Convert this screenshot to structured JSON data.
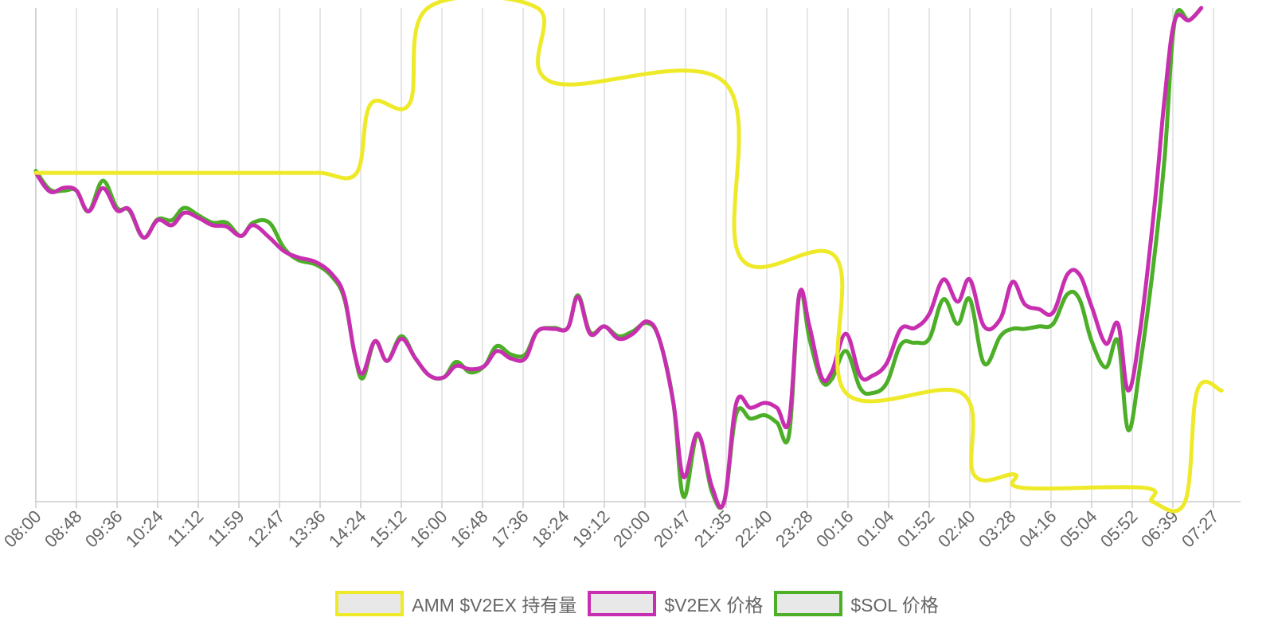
{
  "chart_data": {
    "type": "line",
    "x": [
      "08:00",
      "08:48",
      "09:36",
      "10:24",
      "11:12",
      "11:59",
      "12:47",
      "13:36",
      "14:24",
      "15:12",
      "16:00",
      "16:48",
      "17:36",
      "18:24",
      "19:12",
      "20:00",
      "20:47",
      "21:35",
      "22:40",
      "23:28",
      "00:16",
      "01:04",
      "01:52",
      "02:40",
      "03:28",
      "04:16",
      "05:04",
      "05:52",
      "06:39",
      "07:27"
    ],
    "grid": true,
    "legend_position": "bottom",
    "series": [
      {
        "name": "AMM $V2EX 持有量",
        "color": "#eeea2a",
        "values": [
          [
            0,
            0.666
          ],
          [
            1,
            0.666
          ],
          [
            2,
            0.666
          ],
          [
            3,
            0.666
          ],
          [
            4,
            0.666
          ],
          [
            5,
            0.666
          ],
          [
            6,
            0.666
          ],
          [
            7,
            0.666
          ],
          [
            7.9,
            0.666
          ],
          [
            8.25,
            0.806
          ],
          [
            9.2,
            0.806
          ],
          [
            9.65,
            1.0
          ],
          [
            12.35,
            1.0
          ],
          [
            12.7,
            0.85
          ],
          [
            16.95,
            0.85
          ],
          [
            17.35,
            0.495
          ],
          [
            19.7,
            0.495
          ],
          [
            19.95,
            0.22
          ],
          [
            22.8,
            0.22
          ],
          [
            23.1,
            0.055
          ],
          [
            24.1,
            0.055
          ],
          [
            24.3,
            0.028
          ],
          [
            27.3,
            0.028
          ],
          [
            27.5,
            0.0
          ],
          [
            28.3,
            0.0
          ],
          [
            28.6,
            0.225
          ],
          [
            29.2,
            0.225
          ]
        ]
      },
      {
        "name": "$V2EX 价格",
        "color": "#c72fb0",
        "values": [
          [
            0,
            0.666
          ],
          [
            0.35,
            0.628
          ],
          [
            0.7,
            0.636
          ],
          [
            1.0,
            0.63
          ],
          [
            1.3,
            0.588
          ],
          [
            1.65,
            0.635
          ],
          [
            2.0,
            0.59
          ],
          [
            2.3,
            0.592
          ],
          [
            2.65,
            0.535
          ],
          [
            3.0,
            0.57
          ],
          [
            3.35,
            0.56
          ],
          [
            3.65,
            0.585
          ],
          [
            4.0,
            0.575
          ],
          [
            4.35,
            0.56
          ],
          [
            4.7,
            0.557
          ],
          [
            5.05,
            0.538
          ],
          [
            5.35,
            0.56
          ],
          [
            5.75,
            0.535
          ],
          [
            6.1,
            0.508
          ],
          [
            6.45,
            0.495
          ],
          [
            6.9,
            0.485
          ],
          [
            7.3,
            0.46
          ],
          [
            7.6,
            0.415
          ],
          [
            7.85,
            0.3
          ],
          [
            8.05,
            0.26
          ],
          [
            8.35,
            0.325
          ],
          [
            8.65,
            0.285
          ],
          [
            9.0,
            0.33
          ],
          [
            9.35,
            0.29
          ],
          [
            9.7,
            0.255
          ],
          [
            10.05,
            0.252
          ],
          [
            10.35,
            0.275
          ],
          [
            10.7,
            0.268
          ],
          [
            11.05,
            0.275
          ],
          [
            11.35,
            0.305
          ],
          [
            11.7,
            0.29
          ],
          [
            12.05,
            0.29
          ],
          [
            12.35,
            0.345
          ],
          [
            12.75,
            0.35
          ],
          [
            13.1,
            0.352
          ],
          [
            13.35,
            0.415
          ],
          [
            13.65,
            0.34
          ],
          [
            14.0,
            0.355
          ],
          [
            14.35,
            0.33
          ],
          [
            14.7,
            0.34
          ],
          [
            15.05,
            0.365
          ],
          [
            15.35,
            0.33
          ],
          [
            15.7,
            0.2
          ],
          [
            15.95,
            0.05
          ],
          [
            16.3,
            0.138
          ],
          [
            16.65,
            0.03
          ],
          [
            16.95,
            0.0
          ],
          [
            17.25,
            0.2
          ],
          [
            17.6,
            0.19
          ],
          [
            17.95,
            0.2
          ],
          [
            18.25,
            0.19
          ],
          [
            18.55,
            0.165
          ],
          [
            18.8,
            0.42
          ],
          [
            19.05,
            0.355
          ],
          [
            19.35,
            0.252
          ],
          [
            19.6,
            0.263
          ],
          [
            19.95,
            0.34
          ],
          [
            20.3,
            0.255
          ],
          [
            20.6,
            0.255
          ],
          [
            20.95,
            0.28
          ],
          [
            21.3,
            0.35
          ],
          [
            21.65,
            0.352
          ],
          [
            22.0,
            0.38
          ],
          [
            22.35,
            0.45
          ],
          [
            22.7,
            0.405
          ],
          [
            23.0,
            0.45
          ],
          [
            23.35,
            0.355
          ],
          [
            23.75,
            0.37
          ],
          [
            24.05,
            0.445
          ],
          [
            24.35,
            0.4
          ],
          [
            24.7,
            0.39
          ],
          [
            25.05,
            0.383
          ],
          [
            25.4,
            0.46
          ],
          [
            25.7,
            0.46
          ],
          [
            26.0,
            0.395
          ],
          [
            26.35,
            0.32
          ],
          [
            26.65,
            0.36
          ],
          [
            26.9,
            0.225
          ],
          [
            27.2,
            0.35
          ],
          [
            27.55,
            0.6
          ],
          [
            27.8,
            0.82
          ],
          [
            28.05,
            0.975
          ],
          [
            28.4,
            0.975
          ],
          [
            28.7,
            1.0
          ]
        ]
      },
      {
        "name": "$SOL 价格",
        "color": "#4caf27",
        "values": [
          [
            0,
            0.67
          ],
          [
            0.35,
            0.632
          ],
          [
            0.7,
            0.63
          ],
          [
            1.0,
            0.63
          ],
          [
            1.3,
            0.588
          ],
          [
            1.65,
            0.65
          ],
          [
            2.0,
            0.595
          ],
          [
            2.3,
            0.59
          ],
          [
            2.65,
            0.535
          ],
          [
            3.0,
            0.572
          ],
          [
            3.35,
            0.57
          ],
          [
            3.65,
            0.595
          ],
          [
            4.0,
            0.58
          ],
          [
            4.35,
            0.565
          ],
          [
            4.7,
            0.565
          ],
          [
            5.05,
            0.538
          ],
          [
            5.35,
            0.565
          ],
          [
            5.75,
            0.565
          ],
          [
            6.1,
            0.515
          ],
          [
            6.45,
            0.49
          ],
          [
            6.9,
            0.48
          ],
          [
            7.3,
            0.455
          ],
          [
            7.6,
            0.41
          ],
          [
            7.85,
            0.3
          ],
          [
            8.05,
            0.25
          ],
          [
            8.35,
            0.325
          ],
          [
            8.65,
            0.285
          ],
          [
            9.0,
            0.335
          ],
          [
            9.35,
            0.29
          ],
          [
            9.7,
            0.255
          ],
          [
            10.05,
            0.252
          ],
          [
            10.35,
            0.283
          ],
          [
            10.7,
            0.262
          ],
          [
            11.05,
            0.275
          ],
          [
            11.35,
            0.315
          ],
          [
            11.7,
            0.298
          ],
          [
            12.05,
            0.298
          ],
          [
            12.35,
            0.345
          ],
          [
            12.75,
            0.352
          ],
          [
            13.1,
            0.352
          ],
          [
            13.35,
            0.418
          ],
          [
            13.65,
            0.343
          ],
          [
            14.0,
            0.355
          ],
          [
            14.35,
            0.335
          ],
          [
            14.7,
            0.345
          ],
          [
            15.05,
            0.362
          ],
          [
            15.35,
            0.33
          ],
          [
            15.7,
            0.2
          ],
          [
            15.95,
            0.01
          ],
          [
            16.3,
            0.135
          ],
          [
            16.65,
            0.02
          ],
          [
            16.95,
            0.0
          ],
          [
            17.25,
            0.178
          ],
          [
            17.6,
            0.168
          ],
          [
            17.95,
            0.175
          ],
          [
            18.25,
            0.16
          ],
          [
            18.55,
            0.137
          ],
          [
            18.8,
            0.42
          ],
          [
            19.05,
            0.33
          ],
          [
            19.35,
            0.245
          ],
          [
            19.6,
            0.248
          ],
          [
            19.95,
            0.305
          ],
          [
            20.3,
            0.23
          ],
          [
            20.6,
            0.22
          ],
          [
            20.95,
            0.24
          ],
          [
            21.3,
            0.318
          ],
          [
            21.65,
            0.322
          ],
          [
            22.0,
            0.33
          ],
          [
            22.35,
            0.41
          ],
          [
            22.7,
            0.36
          ],
          [
            23.0,
            0.41
          ],
          [
            23.35,
            0.28
          ],
          [
            23.75,
            0.335
          ],
          [
            24.05,
            0.35
          ],
          [
            24.35,
            0.35
          ],
          [
            24.7,
            0.355
          ],
          [
            25.05,
            0.36
          ],
          [
            25.4,
            0.42
          ],
          [
            25.7,
            0.41
          ],
          [
            26.0,
            0.325
          ],
          [
            26.35,
            0.272
          ],
          [
            26.65,
            0.325
          ],
          [
            26.9,
            0.145
          ],
          [
            27.2,
            0.28
          ],
          [
            27.55,
            0.5
          ],
          [
            27.8,
            0.7
          ],
          [
            28.05,
            0.975
          ],
          [
            28.4,
            0.975
          ],
          [
            28.7,
            1.0
          ]
        ]
      }
    ]
  }
}
